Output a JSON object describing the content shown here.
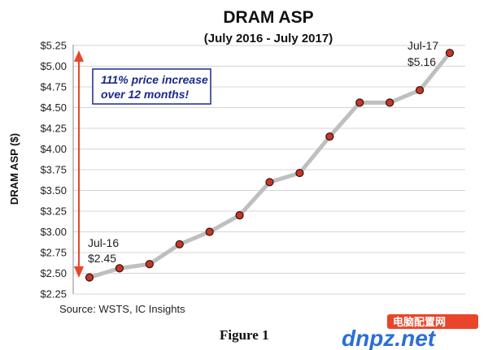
{
  "chart_data": {
    "type": "line",
    "title": "DRAM ASP",
    "subtitle": "(July 2016 - July 2017)",
    "ylabel": "DRAM ASP ($)",
    "ylim": [
      2.25,
      5.25
    ],
    "y_ticks": [
      "$2.25",
      "$2.50",
      "$2.75",
      "$3.00",
      "$3.25",
      "$3.50",
      "$3.75",
      "$4.00",
      "$4.25",
      "$4.50",
      "$4.75",
      "$5.00",
      "$5.25"
    ],
    "y_tick_values": [
      2.25,
      2.5,
      2.75,
      3.0,
      3.25,
      3.5,
      3.75,
      4.0,
      4.25,
      4.5,
      4.75,
      5.0,
      5.25
    ],
    "grid": "horizontal",
    "values": [
      2.45,
      2.56,
      2.61,
      2.85,
      3.0,
      3.2,
      3.6,
      3.71,
      4.15,
      4.56,
      4.56,
      4.71,
      5.16
    ],
    "colors": {
      "line": "#bfbfbf",
      "marker": "#c0392b",
      "marker_edge": "#3a0d0d",
      "arrow": "#e8452a",
      "callout_text": "#1a2a8a",
      "callout_border": "#1a2a8a"
    },
    "annotations": {
      "start_label": "Jul-16",
      "start_value": "$2.45",
      "end_label": "Jul-17",
      "end_value": "$5.16",
      "callout_line1": "111% price increase",
      "callout_line2": "over 12 months!"
    }
  },
  "source": "Source:  WSTS, IC Insights",
  "figure_caption": "Figure 1",
  "watermark": {
    "logo_text": "dnpz.net",
    "tagline": "电脑配置网"
  }
}
